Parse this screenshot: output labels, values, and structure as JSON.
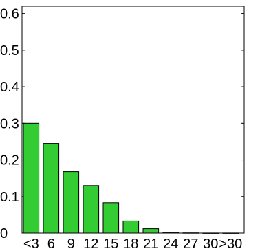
{
  "chart_data": {
    "type": "bar",
    "categories": [
      "<3",
      "6",
      "9",
      "12",
      "15",
      "18",
      "21",
      "24",
      "27",
      "30",
      ">30"
    ],
    "values": [
      0.3,
      0.245,
      0.168,
      0.13,
      0.083,
      0.033,
      0.012,
      0.002,
      0.0005,
      0.0002,
      0.0001
    ],
    "title": "",
    "xlabel": "",
    "ylabel": "",
    "ylim": [
      0,
      0.62
    ],
    "yticks": [
      "0",
      "0.1",
      "0.2",
      "0.3",
      "0.4",
      "0.5",
      "0.6"
    ],
    "grid": false,
    "legend": "none",
    "bar_color": "#33cc33",
    "bar_edge_color": "#000000"
  }
}
